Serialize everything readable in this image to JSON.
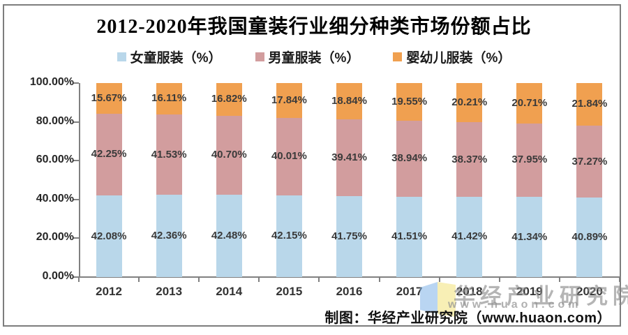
{
  "page": {
    "title": "2012-2020年我国童装行业细分种类市场份额占比",
    "footer": "制图：华经产业研究院（www.huaon.com）",
    "watermark": {
      "name": "华经产业研究院",
      "url": "www.huaon.com"
    }
  },
  "chart_data": {
    "type": "bar",
    "stacked": true,
    "title": "2012-2020年我国童装行业细分种类市场份额占比",
    "categories": [
      "2012",
      "2013",
      "2014",
      "2015",
      "2016",
      "2017",
      "2018",
      "2019",
      "2020"
    ],
    "series": [
      {
        "name": "女童服装（%）",
        "color": "#B9D7EA",
        "values": [
          42.08,
          42.36,
          42.48,
          42.15,
          41.75,
          41.51,
          41.42,
          41.34,
          40.89
        ]
      },
      {
        "name": "男童服装（%）",
        "color": "#D29D9E",
        "values": [
          42.25,
          41.53,
          40.7,
          40.01,
          39.41,
          38.94,
          38.37,
          37.95,
          37.27
        ]
      },
      {
        "name": "婴幼儿服装（%）",
        "color": "#F0A050",
        "values": [
          15.67,
          16.11,
          16.82,
          17.84,
          18.84,
          19.55,
          20.21,
          20.71,
          21.84
        ]
      }
    ],
    "y_ticks": [
      "100.00%",
      "80.00%",
      "60.00%",
      "40.00%",
      "20.00%",
      "0.00%"
    ],
    "ylim": [
      0,
      100
    ],
    "grid": false,
    "legend_position": "top",
    "value_suffix": "%",
    "xlabel": "",
    "ylabel": ""
  },
  "colors": {
    "axis": "#808080",
    "data_label": "#3a3a3a",
    "watermark_gray": "#878787",
    "logo_blue": "#7FB3E8",
    "logo_yellow": "#F7ECA8"
  }
}
